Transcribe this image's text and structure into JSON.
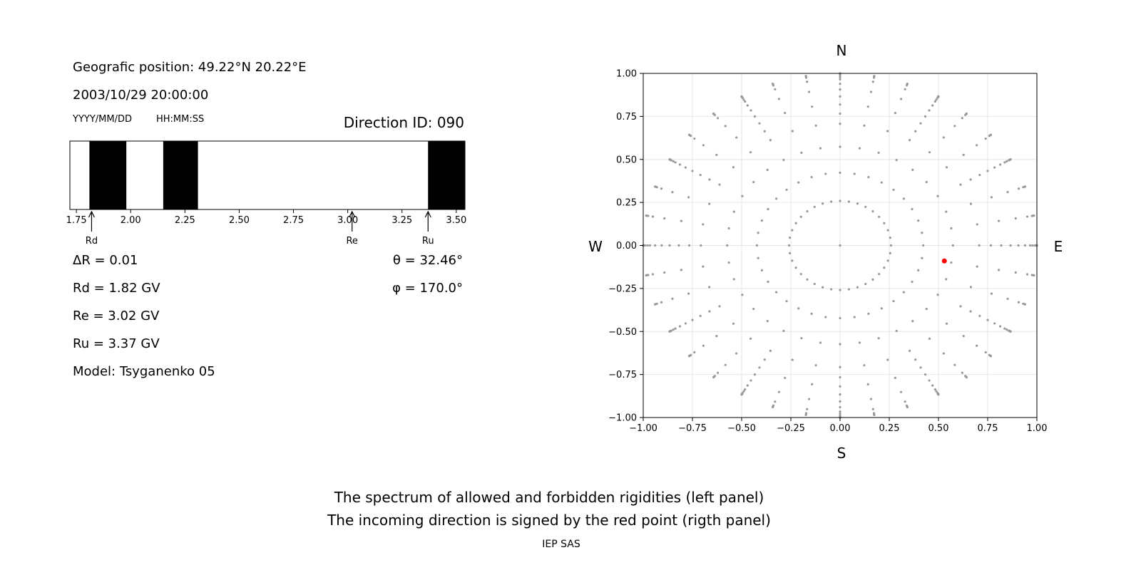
{
  "left_panel": {
    "position_text": "Geografic position: 49.22°N 20.22°E",
    "datetime_text": "2003/10/29 20:00:00",
    "date_format_label": "YYYY/MM/DD",
    "time_format_label": "HH:MM:SS",
    "direction_id_text": "Direction ID: 090",
    "delta_r_text": "ΔR = 0.01",
    "rd_text": "Rd = 1.82 GV",
    "re_text": "Re = 3.02 GV",
    "ru_text": "Ru = 3.37 GV",
    "model_text": "Model: Tsyganenko 05",
    "theta_text": "θ = 32.46°",
    "phi_text": "φ = 170.0°"
  },
  "right_panel": {
    "north_label": "N",
    "south_label": "S",
    "west_label": "W",
    "east_label": "E"
  },
  "footer": {
    "line1": "The spectrum of allowed and forbidden rigidities (left panel)",
    "line2": "The incoming direction is signed by the red point (rigth panel)",
    "credit": "IEP SAS"
  },
  "chart_data": [
    {
      "type": "bar",
      "name": "rigidity-spectrum",
      "xlim": [
        1.72,
        3.54
      ],
      "xticks": [
        "1.75",
        "2.00",
        "2.25",
        "2.50",
        "2.75",
        "3.00",
        "3.25",
        "3.50"
      ],
      "xtick_values": [
        1.75,
        2.0,
        2.25,
        2.5,
        2.75,
        3.0,
        3.25,
        3.5
      ],
      "forbidden_bands": [
        [
          1.81,
          1.98
        ],
        [
          2.15,
          2.31
        ],
        [
          3.37,
          3.54
        ]
      ],
      "markers": [
        {
          "label": "Rd",
          "value": 1.82
        },
        {
          "label": "Re",
          "value": 3.02
        },
        {
          "label": "Ru",
          "value": 3.37
        }
      ],
      "fill_color": "#000000",
      "background_color": "#ffffff"
    },
    {
      "type": "scatter",
      "name": "incoming-directions",
      "xlim": [
        -1.0,
        1.0
      ],
      "ylim": [
        -1.0,
        1.0
      ],
      "xticks": [
        "−1.00",
        "−0.75",
        "−0.50",
        "−0.25",
        "0.00",
        "0.25",
        "0.50",
        "0.75",
        "1.00"
      ],
      "yticks": [
        "1.00",
        "0.75",
        "0.50",
        "0.25",
        "0.00",
        "−0.25",
        "−0.50",
        "−0.75",
        "−1.00"
      ],
      "tick_values": [
        -1.0,
        -0.75,
        -0.5,
        -0.25,
        0.0,
        0.25,
        0.5,
        0.75,
        1.0
      ],
      "grid": true,
      "zenith_angles_deg": [
        0,
        15,
        25,
        35,
        45,
        55,
        65,
        75,
        82,
        86,
        88,
        90
      ],
      "azimuth_step_deg": 10,
      "ring_offsets_deg": {
        "5": 15,
        "6": 12,
        "7": 10,
        "8": 8
      },
      "extra_zenith_on_cardinals_deg": [
        60,
        70,
        78,
        84
      ],
      "point_color": "#999999",
      "highlight_point": {
        "x": 0.53,
        "y": -0.09,
        "color": "#ff0000"
      }
    }
  ]
}
